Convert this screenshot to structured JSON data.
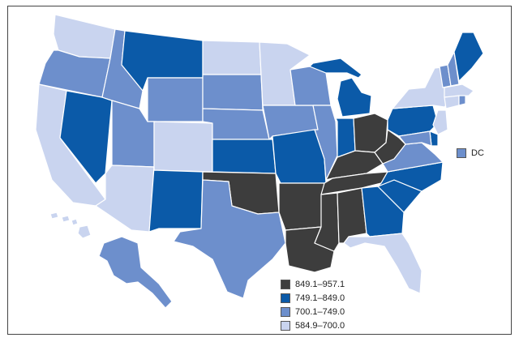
{
  "map": {
    "legend": [
      {
        "label": "849.1–957.1",
        "color": "#3d3d3d"
      },
      {
        "label": "749.1–849.0",
        "color": "#0b5aa8"
      },
      {
        "label": "700.1–749.0",
        "color": "#6d8fcc"
      },
      {
        "label": "584.9–700.0",
        "color": "#c9d4ef"
      }
    ],
    "dc": {
      "label": "DC",
      "color": "#6d8fcc"
    },
    "state_classes": {
      "WA": 3,
      "OR": 2,
      "CA": 3,
      "NV": 1,
      "ID": 2,
      "MT": 1,
      "WY": 2,
      "UT": 2,
      "AZ": 3,
      "CO": 3,
      "NM": 1,
      "ND": 3,
      "SD": 2,
      "NE": 2,
      "KS": 1,
      "OK": 0,
      "TX": 2,
      "MN": 3,
      "IA": 2,
      "MO": 1,
      "AR": 0,
      "LA": 0,
      "WI": 2,
      "IL": 2,
      "MI": 1,
      "IN": 1,
      "OH": 0,
      "KY": 0,
      "TN": 0,
      "MS": 0,
      "AL": 0,
      "GA": 1,
      "FL": 3,
      "SC": 1,
      "NC": 1,
      "VA": 2,
      "WV": 0,
      "PA": 1,
      "NY": 3,
      "VT": 2,
      "NH": 2,
      "ME": 1,
      "MA": 3,
      "CT": 3,
      "RI": 2,
      "NJ": 3,
      "DE": 1,
      "MD": 2,
      "AK": 2,
      "HI": 3
    }
  }
}
